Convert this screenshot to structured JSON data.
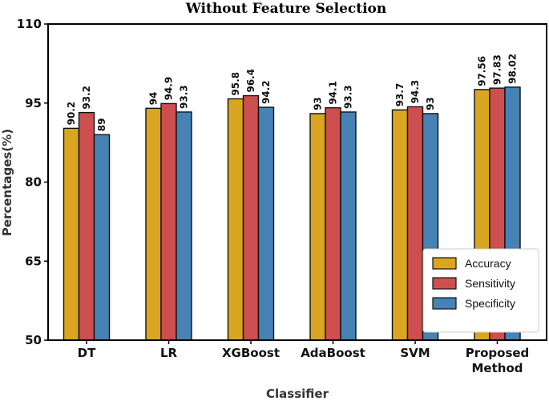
{
  "chart_data": {
    "type": "bar",
    "title": "Without Feature Selection",
    "xlabel": "Classifier",
    "ylabel": "Percentages(%)",
    "ylim": [
      50,
      110
    ],
    "yticks": [
      "50",
      "65",
      "80",
      "95",
      "110"
    ],
    "categories": [
      "DT",
      "LR",
      "XGBoost",
      "AdaBoost",
      "SVM",
      "Proposed Method"
    ],
    "category_display_lines": [
      [
        "DT"
      ],
      [
        "LR"
      ],
      [
        "XGBoost"
      ],
      [
        "AdaBoost"
      ],
      [
        "SVM"
      ],
      [
        "Proposed",
        "Method"
      ]
    ],
    "series": [
      {
        "name": "Accuracy",
        "color": "#DAA520",
        "values": [
          90.2,
          94,
          95.8,
          93,
          93.7,
          97.56
        ],
        "labels": [
          "90.2",
          "94",
          "95.8",
          "93",
          "93.7",
          "97.56"
        ]
      },
      {
        "name": "Sensitivity",
        "color": "#CD4F4F",
        "values": [
          93.2,
          94.9,
          96.4,
          94.1,
          94.3,
          97.83
        ],
        "labels": [
          "93.2",
          "94.9",
          "96.4",
          "94.1",
          "94.3",
          "97.83"
        ]
      },
      {
        "name": "Specificity",
        "color": "#4682B4",
        "values": [
          89,
          93.3,
          94.2,
          93.3,
          93,
          98.02
        ],
        "labels": [
          "89",
          "93.3",
          "94.2",
          "93.3",
          "93",
          "98.02"
        ]
      }
    ],
    "grid": false,
    "legend_position": "lower-right"
  }
}
